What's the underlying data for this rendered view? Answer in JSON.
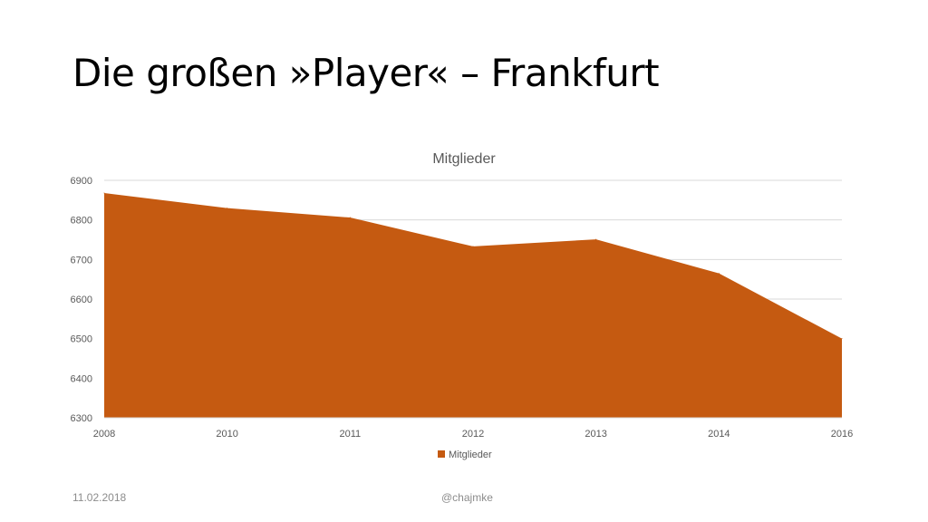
{
  "slide": {
    "title": "Die großen »Player« – Frankfurt",
    "footer_date": "11.02.2018",
    "footer_handle": "@chajmke"
  },
  "chart_data": {
    "type": "area",
    "title": "Mitglieder",
    "categories": [
      "2008",
      "2010",
      "2011",
      "2012",
      "2013",
      "2014",
      "2016"
    ],
    "series": [
      {
        "name": "Mitglieder",
        "values": [
          6868,
          6830,
          6806,
          6733,
          6751,
          6665,
          6500
        ],
        "color": "#c55a11"
      }
    ],
    "ylim": [
      6300,
      6900
    ],
    "yticks": [
      6300,
      6400,
      6500,
      6600,
      6700,
      6800,
      6900
    ],
    "grid": true,
    "legend": "bottom"
  }
}
